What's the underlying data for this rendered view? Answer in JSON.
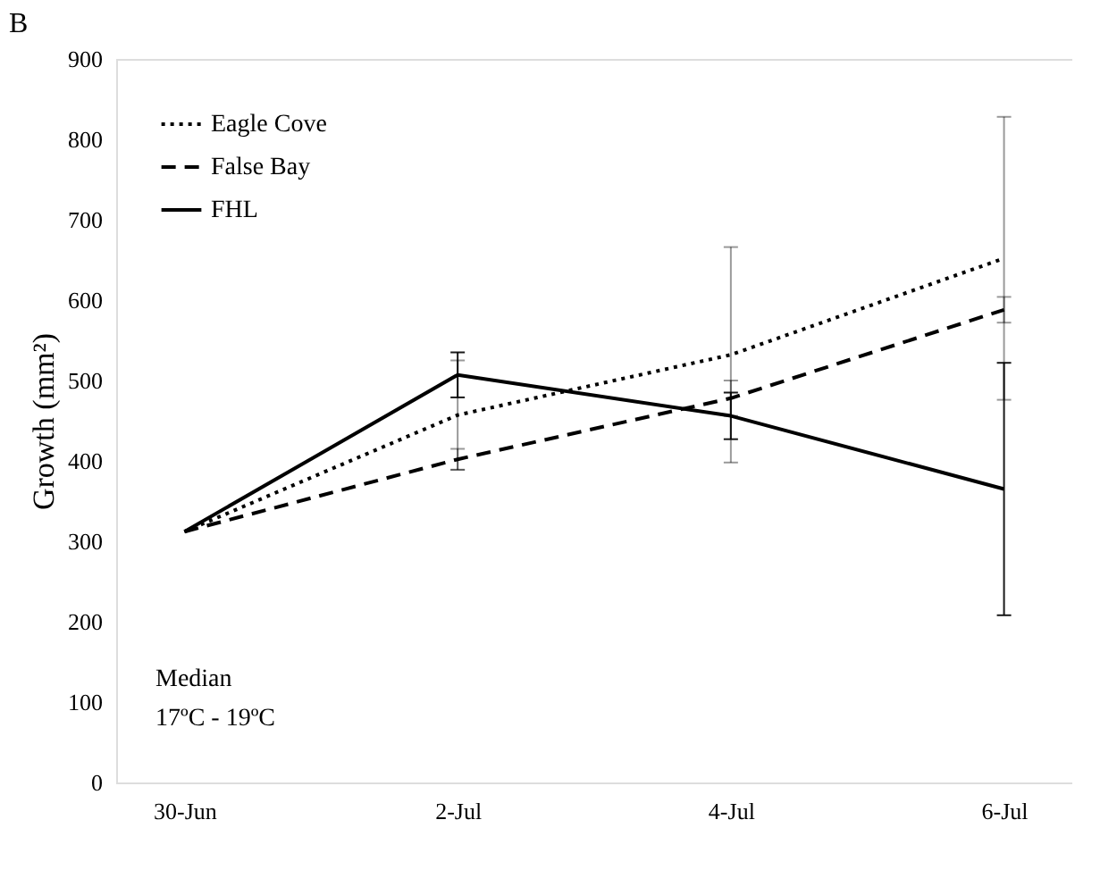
{
  "chart_data": {
    "type": "line",
    "title": "B",
    "ylabel": "Growth (mm²)",
    "categories": [
      "30-Jun",
      "2-Jul",
      "4-Jul",
      "6-Jul"
    ],
    "series": [
      {
        "name": "Eagle Cove",
        "color": "#000000",
        "line_style": "dotted",
        "values": [
          312,
          457,
          532,
          652
        ],
        "errors": [
          null,
          68,
          134,
          176
        ]
      },
      {
        "name": "False Bay",
        "color": "#000000",
        "line_style": "dashed",
        "values": [
          312,
          402,
          478,
          588
        ],
        "errors": [
          null,
          13,
          22,
          16
        ]
      },
      {
        "name": "FHL",
        "color": "#000000",
        "line_style": "solid",
        "values": [
          312,
          507,
          456,
          365
        ],
        "errors": [
          null,
          28,
          29,
          157
        ]
      }
    ],
    "ylim": [
      0,
      900
    ],
    "yticks": [
      0,
      100,
      200,
      300,
      400,
      500,
      600,
      700,
      800,
      900
    ],
    "grid": false,
    "legend": "top left",
    "marker": "none",
    "annotations": [
      "Median",
      "17ºC - 19ºC"
    ]
  }
}
